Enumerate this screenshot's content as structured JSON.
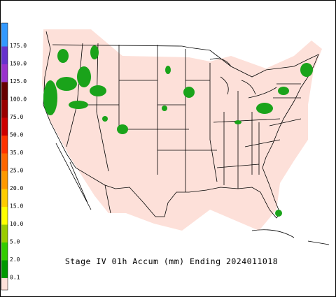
{
  "title": "Stage IV 01h Accum (mm) Ending 2024011018",
  "legend": [
    {
      "label": "",
      "color": "#3399ff"
    },
    {
      "label": "175.0",
      "color": "#3399ff"
    },
    {
      "label": "150.0",
      "color": "#6633cc"
    },
    {
      "label": "125.0",
      "color": "#9933cc"
    },
    {
      "label": "100.0",
      "color": "#660000"
    },
    {
      "label": "75.0",
      "color": "#990000"
    },
    {
      "label": "50.0",
      "color": "#cc0000"
    },
    {
      "label": "35.0",
      "color": "#ff3300"
    },
    {
      "label": "25.0",
      "color": "#ff6600"
    },
    {
      "label": "20.0",
      "color": "#ff9900"
    },
    {
      "label": "15.0",
      "color": "#ffcc00"
    },
    {
      "label": "10.0",
      "color": "#ffff00"
    },
    {
      "label": "5.0",
      "color": "#99cc00"
    },
    {
      "label": "2.0",
      "color": "#33cc00"
    },
    {
      "label": "0.1",
      "color": "#009900"
    }
  ],
  "background_color": "#fde0d9"
}
